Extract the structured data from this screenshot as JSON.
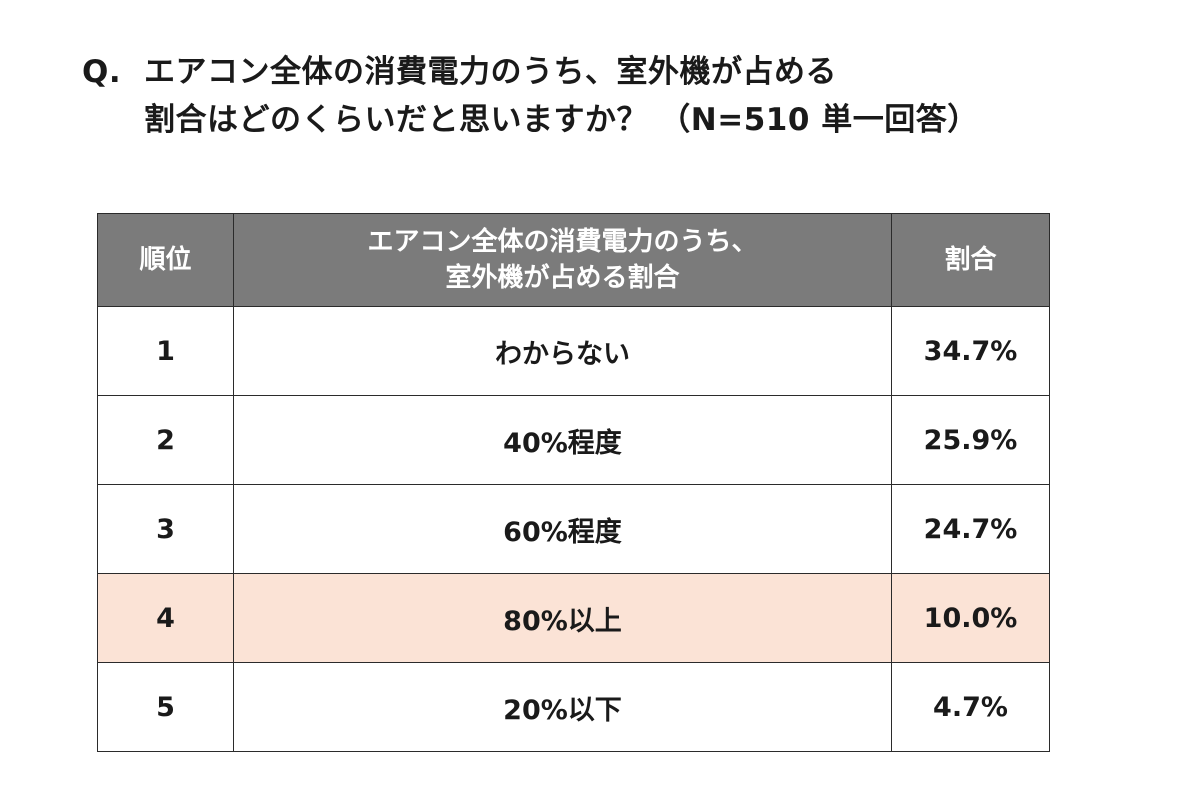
{
  "question": {
    "prefix": "Q.",
    "line1": "エアコン全体の消費電力のうち、室外機が占める",
    "line2": "割合はどのくらいだと思いますか？ （N=510  単一回答）"
  },
  "table": {
    "headers": {
      "rank": "順位",
      "answer_line1": "エアコン全体の消費電力のうち、",
      "answer_line2": "室外機が占める割合",
      "ratio": "割合"
    },
    "rows": [
      {
        "rank": "1",
        "answer": "わからない",
        "ratio": "34.7%"
      },
      {
        "rank": "2",
        "answer": "40%程度",
        "ratio": "25.9%"
      },
      {
        "rank": "3",
        "answer": "60%程度",
        "ratio": "24.7%"
      },
      {
        "rank": "4",
        "answer": "80%以上",
        "ratio": "10.0%"
      },
      {
        "rank": "5",
        "answer": "20%以下",
        "ratio": "4.7%"
      }
    ],
    "highlight_row": 4
  },
  "colors": {
    "header_bg": "#7b7b7b",
    "header_text": "#ffffff",
    "highlight_bg": "#fbe3d6",
    "border": "#2b2b2b"
  }
}
